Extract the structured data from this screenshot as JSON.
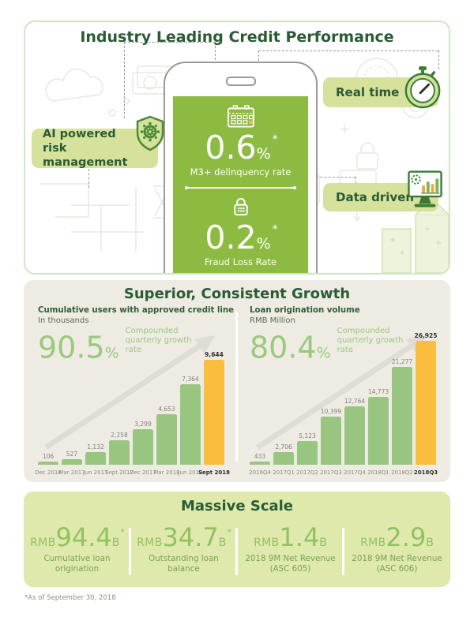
{
  "top": {
    "title": "Industry Leading Credit Performance",
    "ai_label": "AI powered risk management",
    "real_time_label": "Real time",
    "data_driven_label": "Data driven",
    "phone": {
      "delinquency": {
        "value": "0.6",
        "unit": "%",
        "note": "*",
        "label": "M3+ delinquency rate"
      },
      "fraud": {
        "value": "0.2",
        "unit": "%",
        "note": "*",
        "label": "Fraud Loss Rate"
      }
    }
  },
  "growth": {
    "title": "Superior, Consistent Growth"
  },
  "chart_data": [
    {
      "type": "bar",
      "title": "Cumulative users with approved credit line",
      "subtitle": "In thousands",
      "growth_rate": "90.5",
      "growth_rate_unit": "%",
      "growth_label": "Compounded quarterly growth rate",
      "categories": [
        "Dec 2016",
        "Mar 2017",
        "Jun 2017",
        "Sept 2017",
        "Dec 2017",
        "Mar 2018",
        "Jun 2018",
        "Sept 2018"
      ],
      "values": [
        106,
        527,
        1132,
        2258,
        3299,
        4653,
        7364,
        9644
      ],
      "value_labels": [
        "106",
        "527",
        "1,132",
        "2,258",
        "3,299",
        "4,653",
        "7,364",
        "9,644"
      ],
      "highlight_index": 7,
      "bar_color": "#98c681",
      "highlight_color": "#fbbd3e",
      "ylim": [
        0,
        9644
      ],
      "grid": false,
      "legend": "none"
    },
    {
      "type": "bar",
      "title": "Loan origination volume",
      "subtitle": "RMB  Million",
      "growth_rate": "80.4",
      "growth_rate_unit": "%",
      "growth_label": "Compounded quarterly growth rate",
      "categories": [
        "2016Q4",
        "2017Q1",
        "2017Q2",
        "2017Q3",
        "2017Q4",
        "2018Q1",
        "2018Q2",
        "2018Q3"
      ],
      "values": [
        433,
        2706,
        5123,
        10399,
        12764,
        14773,
        21277,
        26925
      ],
      "value_labels": [
        "433",
        "2,706",
        "5,123",
        "10,399",
        "12,764",
        "14,773",
        "21,277",
        "26,925"
      ],
      "highlight_index": 7,
      "bar_color": "#98c681",
      "highlight_color": "#fbbd3e",
      "ylim": [
        0,
        26925
      ],
      "grid": false,
      "legend": "none"
    }
  ],
  "scale": {
    "title": "Massive Scale",
    "stats": [
      {
        "currency": "RMB",
        "value": "94.4",
        "suffix": "B",
        "note": "*",
        "label": "Cumulative loan origination"
      },
      {
        "currency": "RMB",
        "value": "34.7",
        "suffix": "B",
        "note": "*",
        "label": "Outstanding loan balance"
      },
      {
        "currency": "RMB",
        "value": "1.4",
        "suffix": "B",
        "note": "",
        "label": "2018 9M Net Revenue (ASC 605)"
      },
      {
        "currency": "RMB",
        "value": "2.9",
        "suffix": "B",
        "note": "",
        "label": "2018 9M Net Revenue (ASC 606)"
      }
    ]
  },
  "footnote": "*As of September 30, 2018",
  "colors": {
    "dark_green": "#2a5b35",
    "pill_green": "#d6e29b",
    "screen_green": "#8dbb42",
    "bar_green": "#98c681",
    "highlight_orange": "#fbbd3e",
    "accent_light_green": "#9cc87e",
    "stat_green": "#92c161"
  }
}
